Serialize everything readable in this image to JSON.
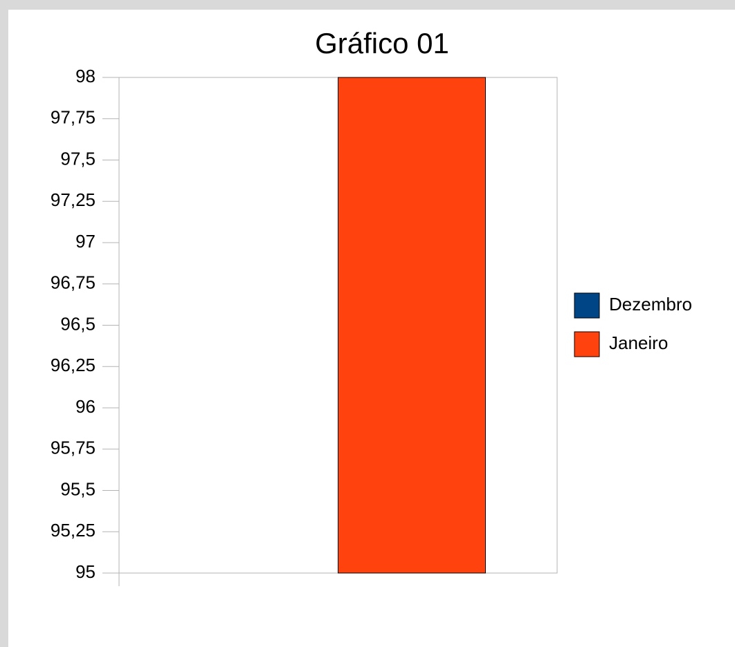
{
  "chart_data": {
    "type": "bar",
    "title": "Gráfico 01",
    "categories": [
      null
    ],
    "series": [
      {
        "name": "Dezembro",
        "color": "#004586",
        "values": [
          95
        ]
      },
      {
        "name": "Janeiro",
        "color": "#ff420e",
        "values": [
          98
        ]
      }
    ],
    "ylim": [
      95,
      98
    ],
    "yticks": [
      95,
      {
        "value": 95.25,
        "label": "95,25"
      },
      {
        "value": 95.5,
        "label": "95,5"
      },
      {
        "value": 95.75,
        "label": "95,75"
      },
      96,
      {
        "value": 96.25,
        "label": "96,25"
      },
      {
        "value": 96.5,
        "label": "96,5"
      },
      {
        "value": 96.75,
        "label": "96,75"
      },
      97,
      {
        "value": 97.25,
        "label": "97,25"
      },
      {
        "value": 97.5,
        "label": "97,5"
      },
      {
        "value": 97.75,
        "label": "97,75"
      },
      98
    ],
    "grid": false,
    "legend": "right"
  }
}
